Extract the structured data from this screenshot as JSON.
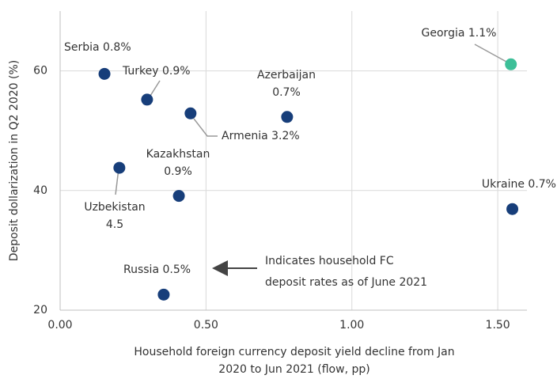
{
  "chart_data": {
    "type": "scatter",
    "xlabel": [
      "Household foreign currency deposit yield decline from Jan",
      "2020 to Jun 2021 (flow, pp)"
    ],
    "ylabel": "Deposit dollarization in Q2 2020 (%)",
    "x": [
      0.152,
      0.298,
      0.447,
      0.778,
      1.545,
      0.407,
      0.203,
      1.55,
      0.355
    ],
    "values": [
      59.5,
      55.2,
      52.9,
      52.3,
      61.1,
      39.1,
      43.8,
      36.9,
      22.6
    ],
    "labels": [
      [
        "Serbia 0.8%"
      ],
      [
        "Turkey 0.9%"
      ],
      [
        "Armenia 3.2%"
      ],
      [
        "Azerbaijan",
        "0.7%"
      ],
      [
        "Georgia 1.1%"
      ],
      [
        "Kazakhstan",
        "0.9%"
      ],
      [
        "Uzbekistan",
        "4.5"
      ],
      [
        "Ukraine 0.7%"
      ],
      [
        "Russia 0.5%"
      ]
    ],
    "colors": [
      "#173e7a",
      "#173e7a",
      "#173e7a",
      "#173e7a",
      "#3dbf98",
      "#173e7a",
      "#173e7a",
      "#173e7a",
      "#173e7a"
    ],
    "annotation": [
      "Indicates household FC",
      "deposit rates as of June 2021"
    ],
    "xlim": [
      0,
      1.6
    ],
    "ylim": [
      20,
      70
    ],
    "xticks": [
      {
        "value": 0,
        "label": "0.00"
      },
      {
        "value": 0.5,
        "label": "0.50"
      },
      {
        "value": 1,
        "label": "1.00"
      },
      {
        "value": 1.5,
        "label": "1.50"
      }
    ],
    "yticks": [
      20,
      40,
      60
    ],
    "grid": true
  }
}
